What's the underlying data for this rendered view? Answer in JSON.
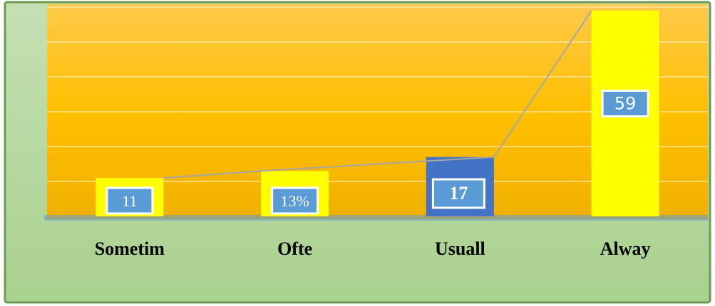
{
  "chart_data": {
    "type": "bar",
    "title": "",
    "xlabel": "",
    "ylabel": "",
    "ylim": [
      0,
      60
    ],
    "grid": true,
    "categories": [
      "Sometim",
      "Ofte",
      "Usuall",
      "Alway"
    ],
    "values": [
      11,
      13,
      17,
      59
    ],
    "data_labels": [
      "11",
      "13%",
      "17",
      "59"
    ],
    "bar_colors": [
      "#ffff00",
      "#ffff00",
      "#4472c4",
      "#ffff00"
    ],
    "label_box_color": "#5b9bd5",
    "line_overlay": {
      "values": [
        11,
        13,
        17,
        59
      ],
      "color": "#a6a6a6"
    },
    "colors": {
      "frame": "#a9d18e",
      "frame_border": "#548235",
      "plot_top": "#ffc000",
      "plot_bottom": "#f4b400",
      "gridline": "#fff2cc"
    }
  }
}
